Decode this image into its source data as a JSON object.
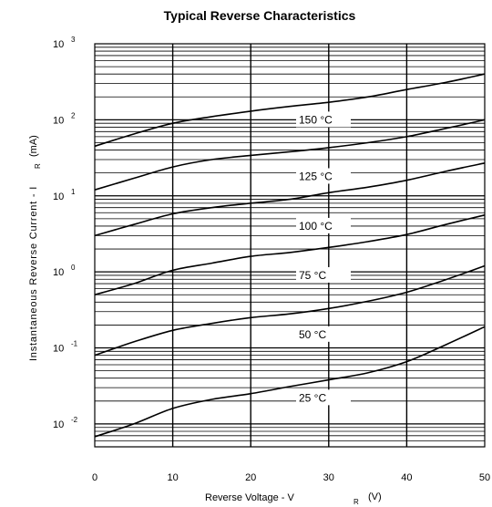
{
  "chart_data": {
    "type": "line",
    "title": "Typical Reverse Characteristics",
    "xlabel": {
      "main": "Reverse Voltage - V",
      "sub": "R",
      "unit": "(V)"
    },
    "ylabel": {
      "main": "Instantaneous Reverse Current - I",
      "sub": "R",
      "unit": "(mA)"
    },
    "xlim": [
      0,
      50
    ],
    "ylim": [
      0.005,
      1000
    ],
    "yscale": "log",
    "grid": true,
    "x_ticks": [
      "0",
      "10",
      "20",
      "30",
      "40",
      "50"
    ],
    "y_ticks": [
      {
        "base": "10",
        "exp": "3"
      },
      {
        "base": "10",
        "exp": "2"
      },
      {
        "base": "10",
        "exp": "1"
      },
      {
        "base": "10",
        "exp": "0"
      },
      {
        "base": "10",
        "exp": "-1"
      },
      {
        "base": "10",
        "exp": "-2"
      }
    ],
    "series": [
      {
        "name": "150 °C",
        "x": [
          0,
          5,
          10,
          15,
          20,
          25,
          30,
          35,
          40,
          45,
          50
        ],
        "y": [
          45,
          65,
          90,
          110,
          130,
          150,
          170,
          200,
          250,
          310,
          400
        ]
      },
      {
        "name": "125 °C",
        "x": [
          0,
          5,
          10,
          15,
          20,
          25,
          30,
          35,
          40,
          45,
          50
        ],
        "y": [
          12,
          17,
          24,
          30,
          34,
          38,
          43,
          50,
          60,
          77,
          100
        ]
      },
      {
        "name": "100 °C",
        "x": [
          0,
          5,
          10,
          15,
          20,
          25,
          30,
          35,
          40,
          45,
          50
        ],
        "y": [
          3,
          4.2,
          5.8,
          7,
          8,
          9,
          11,
          13,
          16,
          21,
          27
        ]
      },
      {
        "name": "75 °C",
        "x": [
          0,
          5,
          10,
          15,
          20,
          25,
          30,
          35,
          40,
          45,
          50
        ],
        "y": [
          0.5,
          0.7,
          1.05,
          1.3,
          1.6,
          1.8,
          2.1,
          2.5,
          3.1,
          4.2,
          5.6
        ]
      },
      {
        "name": "50 °C",
        "x": [
          0,
          5,
          10,
          15,
          20,
          25,
          30,
          35,
          40,
          45,
          50
        ],
        "y": [
          0.08,
          0.12,
          0.17,
          0.21,
          0.25,
          0.28,
          0.33,
          0.41,
          0.54,
          0.79,
          1.2
        ]
      },
      {
        "name": "25 °C",
        "x": [
          0,
          5,
          10,
          15,
          20,
          25,
          30,
          35,
          40,
          45,
          50
        ],
        "y": [
          0.0068,
          0.01,
          0.016,
          0.021,
          0.025,
          0.031,
          0.038,
          0.047,
          0.066,
          0.11,
          0.19
        ]
      }
    ],
    "curve_labels": [
      {
        "text": "150 °C",
        "x": 25,
        "y": 100
      },
      {
        "text": "125 °C",
        "x": 25,
        "y": 18
      },
      {
        "text": "100 °C",
        "x": 25,
        "y": 4
      },
      {
        "text": "75 °C",
        "x": 25,
        "y": 0.9
      },
      {
        "text": "50 °C",
        "x": 25,
        "y": 0.15
      },
      {
        "text": "25 °C",
        "x": 25,
        "y": 0.022
      }
    ]
  }
}
